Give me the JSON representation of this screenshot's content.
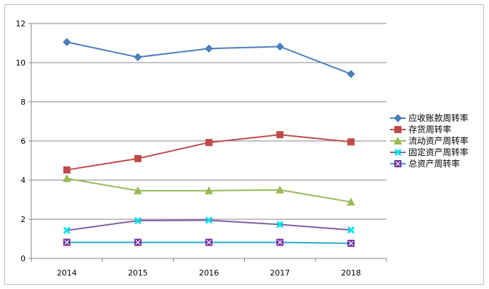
{
  "chart_data": {
    "type": "line",
    "categories": [
      "2014",
      "2015",
      "2016",
      "2017",
      "2018"
    ],
    "ylim": [
      0,
      12
    ],
    "yticks": [
      "0",
      "2",
      "4",
      "6",
      "8",
      "10",
      "12"
    ],
    "grid": true,
    "legend_position": "right",
    "series": [
      {
        "name": "应收账款周转率",
        "values": [
          11.05,
          10.28,
          10.72,
          10.82,
          9.42
        ],
        "color": "#4a7ebb",
        "marker": "diamond"
      },
      {
        "name": "存货周转率",
        "values": [
          4.52,
          5.1,
          5.92,
          6.32,
          5.95
        ],
        "color": "#be4b48",
        "marker": "square"
      },
      {
        "name": "流动资产周转率",
        "values": [
          4.08,
          3.46,
          3.46,
          3.5,
          2.88
        ],
        "color": "#98b954",
        "marker": "triangle"
      },
      {
        "name": "固定资产周转率",
        "values": [
          1.43,
          1.93,
          1.95,
          1.73,
          1.45
        ],
        "color": "#7d60a0",
        "marker": "x",
        "marker_color": "#00e5ee"
      },
      {
        "name": "总资产周转率",
        "values": [
          0.82,
          0.82,
          0.82,
          0.82,
          0.77
        ],
        "color": "#2aa6d6",
        "marker": "square-x",
        "marker_color": "#7030a0"
      }
    ]
  }
}
